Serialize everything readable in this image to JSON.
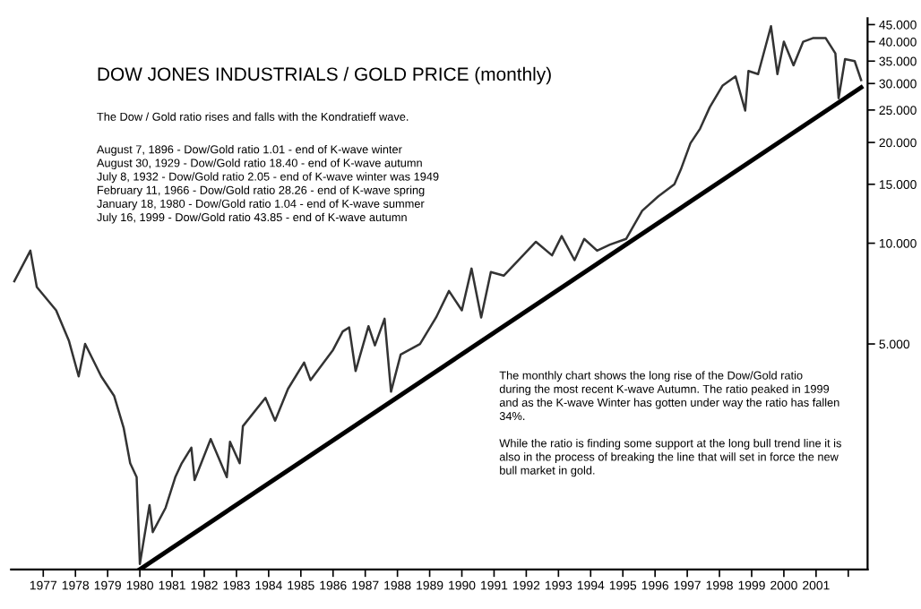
{
  "chart_data": {
    "type": "line",
    "title": "DOW JONES INDUSTRIALS / GOLD PRICE (monthly)",
    "subtitle": "The Dow / Gold ratio rises and falls with the Kondratieff wave.",
    "annotations": [
      "August 7, 1896 - Dow/Gold ratio 1.01 - end of K-wave winter\nAugust 30, 1929 - Dow/Gold ratio 18.40 - end of K-wave autumn\nJuly 8, 1932 - Dow/Gold ratio 2.05 - end of K-wave winter was 1949\nFebruary 11, 1966 - Dow/Gold ratio 28.26 - end of K-wave spring\nJanuary 18, 1980 - Dow/Gold ratio 1.04 - end of K-wave summer\nJuly 16, 1999 - Dow/Gold ratio 43.85 - end of K-wave autumn",
      "The monthly chart shows the long rise of the Dow/Gold ratio\nduring the most recent K-wave Autumn. The ratio peaked in 1999\nand as the K-wave Winter has gotten under way the ratio has fallen\n34%.\n\nWhile the ratio is finding some support at the long bull trend line it is\nalso in the process of breaking the line that will set in force the new\nbull market in gold."
    ],
    "log": "y",
    "grid": false,
    "legend": false,
    "marker": "none",
    "line_style": "solid",
    "xlim": [
      1976.0,
      2002.6
    ],
    "ylim": [
      1.06,
      47
    ],
    "xticks": [
      1977,
      1978,
      1979,
      1980,
      1981,
      1982,
      1983,
      1984,
      1985,
      1986,
      1987,
      1988,
      1989,
      1990,
      1991,
      1992,
      1993,
      1994,
      1995,
      1996,
      1997,
      1998,
      1999,
      2000,
      2001,
      {
        "value": 2002,
        "label": null
      }
    ],
    "yticks": [
      {
        "value": 5,
        "label": "5.000"
      },
      {
        "value": 10,
        "label": "10.000"
      },
      {
        "value": 15,
        "label": "15.000"
      },
      {
        "value": 20,
        "label": "20.000"
      },
      {
        "value": 25,
        "label": "25.000"
      },
      {
        "value": 30,
        "label": "30.000"
      },
      {
        "value": 35,
        "label": "35.000"
      },
      {
        "value": 40,
        "label": "40.000"
      },
      {
        "value": 45,
        "label": "45.000"
      }
    ],
    "series": [
      {
        "color": "#333333",
        "x": [
          1976.1,
          1976.6,
          1976.8,
          1977.4,
          1977.8,
          1978.1,
          1978.3,
          1978.8,
          1979.2,
          1979.5,
          1979.7,
          1979.9,
          1980.0,
          1980.3,
          1980.4,
          1980.8,
          1981.1,
          1981.3,
          1981.6,
          1981.7,
          1982.2,
          1982.7,
          1982.8,
          1983.1,
          1983.2,
          1983.9,
          1984.2,
          1984.6,
          1985.1,
          1985.3,
          1986.0,
          1986.3,
          1986.5,
          1986.7,
          1987.1,
          1987.3,
          1987.6,
          1987.8,
          1988.1,
          1988.7,
          1989.2,
          1989.6,
          1990.0,
          1990.3,
          1990.6,
          1990.9,
          1991.3,
          1991.9,
          1992.3,
          1992.8,
          1993.1,
          1993.5,
          1993.8,
          1994.2,
          1994.6,
          1995.1,
          1995.6,
          1996.1,
          1996.6,
          1996.8,
          1997.1,
          1997.4,
          1997.7,
          1998.1,
          1998.5,
          1998.8,
          1998.9,
          1999.2,
          1999.6,
          1999.8,
          2000.0,
          2000.3,
          2000.6,
          2000.9,
          2001.3,
          2001.6,
          2001.7,
          2001.9,
          2002.2,
          2002.4
        ],
        "values": [
          7.7,
          9.5,
          7.4,
          6.3,
          5.1,
          4.0,
          5.0,
          4.0,
          3.5,
          2.8,
          2.2,
          2.0,
          1.1,
          1.65,
          1.37,
          1.62,
          2.0,
          2.2,
          2.45,
          1.96,
          2.6,
          2.0,
          2.55,
          2.2,
          2.84,
          3.45,
          2.95,
          3.67,
          4.4,
          3.9,
          4.8,
          5.45,
          5.6,
          4.15,
          5.65,
          4.95,
          5.95,
          3.6,
          4.65,
          5.0,
          6.0,
          7.2,
          6.3,
          8.4,
          6.0,
          8.2,
          8.0,
          9.2,
          10.1,
          9.2,
          10.5,
          8.9,
          10.3,
          9.5,
          9.9,
          10.3,
          12.5,
          13.8,
          15.0,
          16.6,
          19.9,
          22.0,
          25.5,
          29.6,
          31.5,
          24.9,
          32.7,
          32,
          44.5,
          32,
          40,
          34,
          40,
          41,
          41,
          36.9,
          27.1,
          35.5,
          35,
          30.7
        ]
      },
      {
        "color": "#000000",
        "x": [
          1980.0,
          2002.4
        ],
        "values": [
          1.06,
          29.2
        ]
      }
    ]
  }
}
